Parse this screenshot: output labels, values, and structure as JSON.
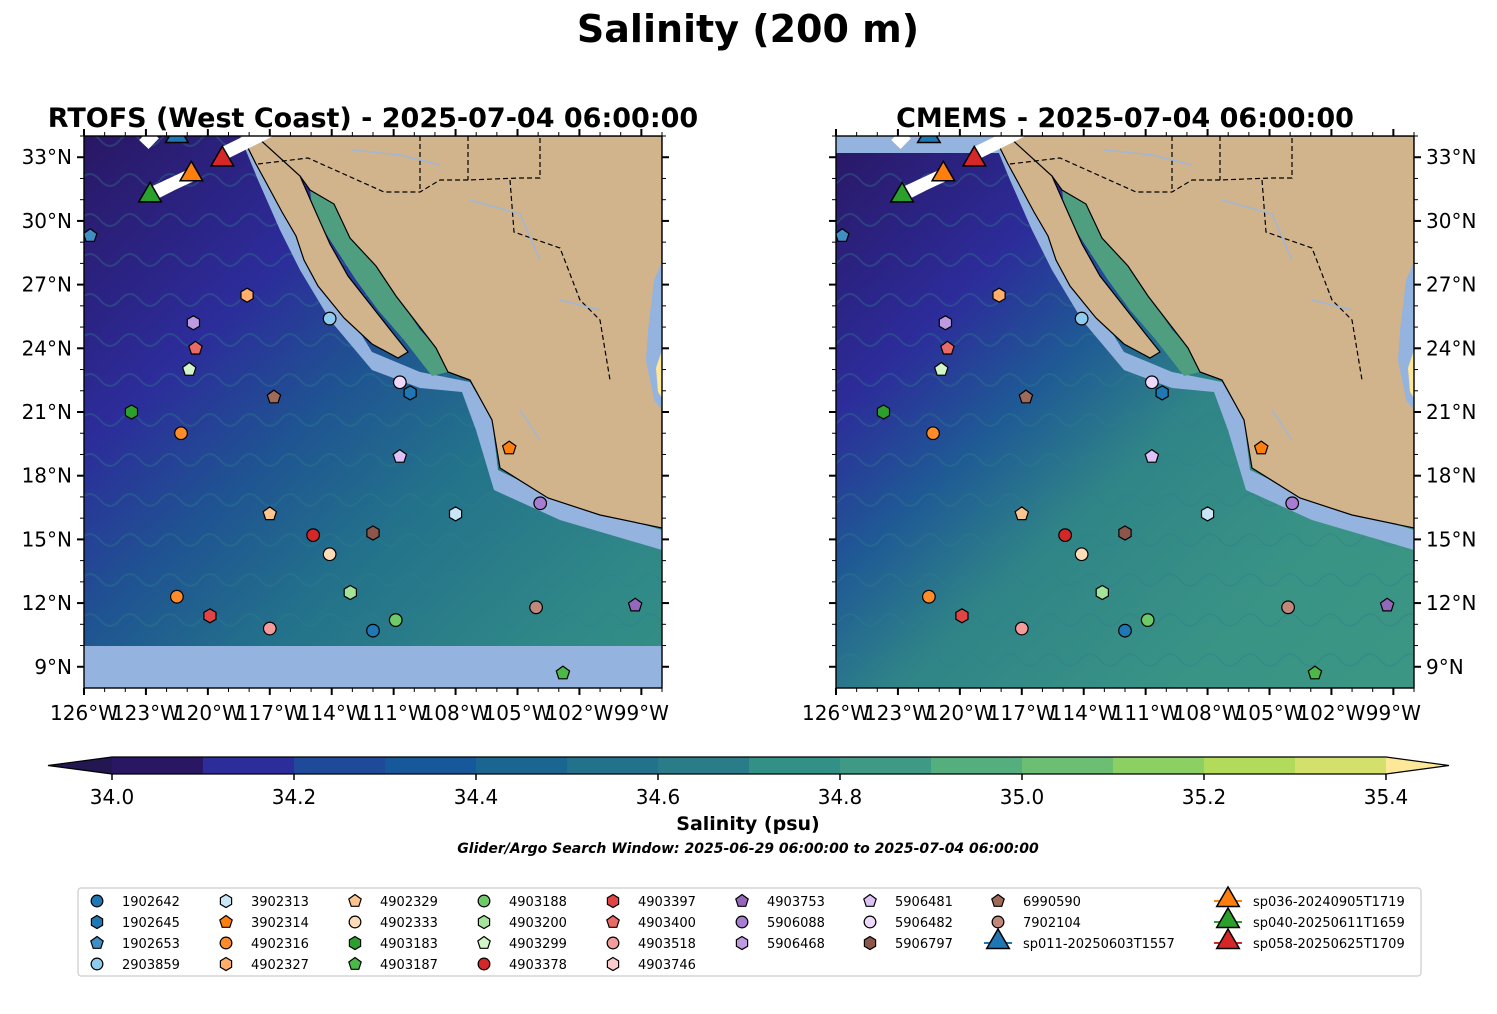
{
  "figure": {
    "title": "Salinity (200 m)",
    "search_window": "Glider/Argo Search Window: 2025-06-29 06:00:00 to 2025-07-04 06:00:00"
  },
  "panels": [
    {
      "id": "rtofs",
      "title": "RTOFS (West Coast) - 2025-07-04 06:00:00",
      "lat_labels_side": "left"
    },
    {
      "id": "cmems",
      "title": "CMEMS - 2025-07-04 06:00:00",
      "lat_labels_side": "right"
    }
  ],
  "map": {
    "lon_range": [
      -126,
      -98
    ],
    "lat_range": [
      8,
      34
    ],
    "lon_ticks": [
      "126°W",
      "123°W",
      "120°W",
      "117°W",
      "114°W",
      "111°W",
      "108°W",
      "105°W",
      "102°W",
      "99°W"
    ],
    "lat_ticks": [
      "9°N",
      "12°N",
      "15°N",
      "18°N",
      "21°N",
      "24°N",
      "27°N",
      "30°N",
      "33°N"
    ],
    "colors": {
      "land": "#d2b48c",
      "out_of_domain": "#95b3df",
      "border": "#000000",
      "rivers": "#9fb7d6"
    }
  },
  "colorbar": {
    "label": "Salinity (psu)",
    "ticks": [
      "34.0",
      "34.2",
      "34.4",
      "34.6",
      "34.8",
      "35.0",
      "35.2",
      "35.4"
    ],
    "min": 34.0,
    "max": 35.4,
    "step": 0.1,
    "colors": [
      "#2a1764",
      "#2c2c9a",
      "#1f4a9a",
      "#16589a",
      "#1b6690",
      "#23728b",
      "#2a7c88",
      "#339086",
      "#3e9a84",
      "#54ae7e",
      "#6cbe72",
      "#8ccf63",
      "#b2db5c",
      "#d4e06c"
    ],
    "extend_low": "#221751",
    "extend_high": "#fde89a"
  },
  "legend": {
    "columns": [
      [
        {
          "label": "1902642",
          "marker": "circle",
          "color": "#1f77b4"
        },
        {
          "label": "1902645",
          "marker": "hexagon",
          "color": "#1f77b4"
        },
        {
          "label": "1902653",
          "marker": "pentagon",
          "color": "#3f8fc4"
        },
        {
          "label": "2903859",
          "marker": "circle",
          "color": "#8fcbec"
        }
      ],
      [
        {
          "label": "3902313",
          "marker": "hexagon",
          "color": "#c9e6f6"
        },
        {
          "label": "3902314",
          "marker": "pentagon",
          "color": "#ff7f0e"
        },
        {
          "label": "4902316",
          "marker": "circle",
          "color": "#ff8c28"
        },
        {
          "label": "4902327",
          "marker": "hexagon",
          "color": "#ffae6b"
        }
      ],
      [
        {
          "label": "4902329",
          "marker": "pentagon",
          "color": "#ffc58f"
        },
        {
          "label": "4902333",
          "marker": "circle",
          "color": "#ffdcb8"
        },
        {
          "label": "4903183",
          "marker": "hexagon",
          "color": "#2ca02c"
        },
        {
          "label": "4903187",
          "marker": "pentagon",
          "color": "#4cb848"
        }
      ],
      [
        {
          "label": "4903188",
          "marker": "circle",
          "color": "#6fcb6a"
        },
        {
          "label": "4903200",
          "marker": "hexagon",
          "color": "#a3e39a"
        },
        {
          "label": "4903299",
          "marker": "pentagon",
          "color": "#d2f5c8"
        },
        {
          "label": "4903378",
          "marker": "circle",
          "color": "#d62728"
        }
      ],
      [
        {
          "label": "4903397",
          "marker": "hexagon",
          "color": "#e04444"
        },
        {
          "label": "4903400",
          "marker": "pentagon",
          "color": "#ec6a66"
        },
        {
          "label": "4903518",
          "marker": "circle",
          "color": "#f49b9b"
        },
        {
          "label": "4903746",
          "marker": "hexagon",
          "color": "#fbcaca"
        }
      ],
      [
        {
          "label": "4903753",
          "marker": "pentagon",
          "color": "#9467bd"
        },
        {
          "label": "5906088",
          "marker": "circle",
          "color": "#a67dd0"
        },
        {
          "label": "5906468",
          "marker": "hexagon",
          "color": "#bd9ae2"
        }
      ],
      [
        {
          "label": "5906481",
          "marker": "pentagon",
          "color": "#dcc2f6"
        },
        {
          "label": "5906482",
          "marker": "circle",
          "color": "#eed8fb"
        },
        {
          "label": "5906797",
          "marker": "hexagon",
          "color": "#8c564b"
        }
      ],
      [
        {
          "label": "6990590",
          "marker": "pentagon",
          "color": "#a06a58"
        },
        {
          "label": "7902104",
          "marker": "circle",
          "color": "#c0887a"
        },
        {
          "label": "sp011-20250603T1557",
          "marker": "triangle",
          "color": "#1f77b4"
        }
      ],
      [
        {
          "label": "sp036-20240905T1719",
          "marker": "triangle",
          "color": "#ff7f0e"
        },
        {
          "label": "sp040-20250611T1659",
          "marker": "triangle",
          "color": "#2ca02c"
        },
        {
          "label": "sp058-20250625T1709",
          "marker": "triangle",
          "color": "#d62728"
        }
      ]
    ]
  },
  "floats": [
    {
      "id": "1902653",
      "lon": -125.7,
      "lat": 29.3
    },
    {
      "id": "4902327",
      "lon": -118.1,
      "lat": 26.5
    },
    {
      "id": "5906468",
      "lon": -120.7,
      "lat": 25.2
    },
    {
      "id": "2903859",
      "lon": -114.1,
      "lat": 25.4
    },
    {
      "id": "4903400",
      "lon": -120.6,
      "lat": 24.0
    },
    {
      "id": "4903299",
      "lon": -120.9,
      "lat": 23.0
    },
    {
      "id": "6990590",
      "lon": -116.8,
      "lat": 21.7
    },
    {
      "id": "5906482",
      "lon": -110.7,
      "lat": 22.4
    },
    {
      "id": "1902645",
      "lon": -110.2,
      "lat": 21.9
    },
    {
      "id": "4903183",
      "lon": -123.7,
      "lat": 21.0
    },
    {
      "id": "4902316",
      "lon": -121.3,
      "lat": 20.0
    },
    {
      "id": "3902314",
      "lon": -105.4,
      "lat": 19.3
    },
    {
      "id": "5906481",
      "lon": -110.7,
      "lat": 18.9
    },
    {
      "id": "4902329",
      "lon": -117.0,
      "lat": 16.2
    },
    {
      "id": "3902313",
      "lon": -108.0,
      "lat": 16.2
    },
    {
      "id": "5906088",
      "lon": -103.9,
      "lat": 16.7
    },
    {
      "id": "4903378",
      "lon": -114.9,
      "lat": 15.2
    },
    {
      "id": "5906797",
      "lon": -112.0,
      "lat": 15.3
    },
    {
      "id": "4902333",
      "lon": -114.1,
      "lat": 14.3
    },
    {
      "id": "4903200",
      "lon": -113.1,
      "lat": 12.5
    },
    {
      "id": "4903188",
      "lon": -110.9,
      "lat": 11.2
    },
    {
      "id": "1902642",
      "lon": -112.0,
      "lat": 10.7
    },
    {
      "id": "4903518",
      "lon": -117.0,
      "lat": 10.8
    },
    {
      "id": "4903397",
      "lon": -119.9,
      "lat": 11.4
    },
    {
      "id": "4902316",
      "lon": -121.5,
      "lat": 12.3
    },
    {
      "id": "7902104",
      "lon": -104.1,
      "lat": 11.8
    },
    {
      "id": "4903753",
      "lon": -99.3,
      "lat": 11.9
    },
    {
      "id": "4903187",
      "lon": -102.8,
      "lat": 8.7
    }
  ],
  "gliders": [
    {
      "id": "sp011-20250603T1557",
      "lon": -121.5,
      "lat": 34.0,
      "track": [
        [
          -123.1,
          33.6
        ],
        [
          -122.6,
          34.1
        ]
      ]
    },
    {
      "id": "sp036-20240905T1719",
      "lon": -120.8,
      "lat": 32.2,
      "track": [
        [
          -122.9,
          31.2
        ],
        [
          -120.7,
          32.2
        ]
      ]
    },
    {
      "id": "sp040-20250611T1659",
      "lon": -122.8,
      "lat": 31.2,
      "track": [
        [
          -122.8,
          31.2
        ],
        [
          -121.8,
          31.7
        ]
      ]
    },
    {
      "id": "sp058-20250625T1709",
      "lon": -119.3,
      "lat": 32.9,
      "track": [
        [
          -119.2,
          33.2
        ],
        [
          -116.9,
          34.3
        ]
      ]
    }
  ]
}
